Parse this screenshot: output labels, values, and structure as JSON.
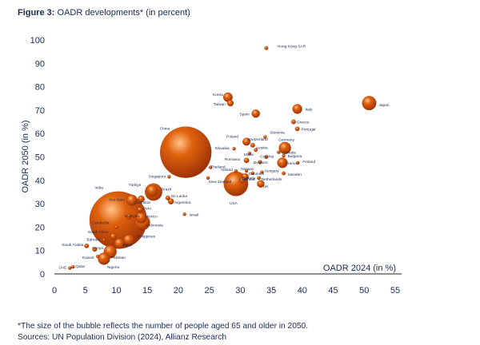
{
  "figure": {
    "label": "Figure 3:",
    "title": "OADR developments* (in percent)",
    "footnote": "*The size of the bubble reflects the number of people aged 65 and older in 2050.",
    "sources": "Sources: UN Population Division (2024), Allianz Research"
  },
  "colors": {
    "bubble_dark": "#9c3206",
    "bubble_mid": "#e0620e",
    "bubble_light": "#ffc48a",
    "axis_text": "#1a2a55",
    "label_text": "#1a2a55"
  },
  "chart_data": {
    "type": "scatter",
    "title": "OADR developments* (in percent)",
    "xlabel": "OADR 2024 (in %)",
    "ylabel": "OADR 2050 (in %)",
    "xlim": [
      0,
      55
    ],
    "ylim": [
      0,
      100
    ],
    "xticks": [
      0,
      5,
      10,
      15,
      20,
      25,
      30,
      35,
      40,
      45,
      50,
      55
    ],
    "yticks": [
      0,
      10,
      20,
      30,
      40,
      50,
      60,
      70,
      80,
      90,
      100
    ],
    "size_meaning": "Number of people aged 65 and older in 2050",
    "points": [
      {
        "label": "Hong Kong SAR",
        "x": 34.2,
        "y": 96.5,
        "size": 2
      },
      {
        "label": "Korea",
        "x": 28.0,
        "y": 75.5,
        "size": 13
      },
      {
        "label": "Taiwan",
        "x": 28.4,
        "y": 73.0,
        "size": 6
      },
      {
        "label": "Spain",
        "x": 32.5,
        "y": 68.5,
        "size": 10
      },
      {
        "label": "Italy",
        "x": 39.2,
        "y": 70.5,
        "size": 14
      },
      {
        "label": "Japan",
        "x": 50.8,
        "y": 73.0,
        "size": 30
      },
      {
        "label": "Greece",
        "x": 38.6,
        "y": 65.0,
        "size": 3
      },
      {
        "label": "Portugal",
        "x": 39.2,
        "y": 62.0,
        "size": 3
      },
      {
        "label": "China",
        "x": 21.2,
        "y": 52.0,
        "size": 400
      },
      {
        "label": "Slovenia",
        "x": 34.0,
        "y": 58.5,
        "size": 1
      },
      {
        "label": "Poland",
        "x": 31.0,
        "y": 56.5,
        "size": 9
      },
      {
        "label": "Switzerland",
        "x": 32.0,
        "y": 55.0,
        "size": 3
      },
      {
        "label": "Slovakia",
        "x": 29.0,
        "y": 53.5,
        "size": 1
      },
      {
        "label": "Austria",
        "x": 32.5,
        "y": 53.0,
        "size": 2
      },
      {
        "label": "Germany",
        "x": 37.2,
        "y": 53.8,
        "size": 22
      },
      {
        "label": "Croatia",
        "x": 36.2,
        "y": 52.0,
        "size": 1
      },
      {
        "label": "Malta",
        "x": 31.5,
        "y": 51.5,
        "size": 1
      },
      {
        "label": "Czechia",
        "x": 34.2,
        "y": 50.0,
        "size": 2
      },
      {
        "label": "Bulgaria",
        "x": 37.0,
        "y": 50.5,
        "size": 1
      },
      {
        "label": "Romania",
        "x": 31.0,
        "y": 48.5,
        "size": 4
      },
      {
        "label": "Belgium",
        "x": 33.2,
        "y": 47.8,
        "size": 2
      },
      {
        "label": "France",
        "x": 36.8,
        "y": 47.5,
        "size": 16
      },
      {
        "label": "Finland",
        "x": 39.3,
        "y": 47.5,
        "size": 1
      },
      {
        "label": "Thailand",
        "x": 25.2,
        "y": 45.5,
        "size": 1
      },
      {
        "label": "Ireland",
        "x": 29.3,
        "y": 44.0,
        "size": 1
      },
      {
        "label": "Norway",
        "x": 31.0,
        "y": 44.0,
        "size": 1
      },
      {
        "label": "Denmark",
        "x": 32.0,
        "y": 43.0,
        "size": 1
      },
      {
        "label": "Canada",
        "x": 30.8,
        "y": 41.5,
        "size": 7
      },
      {
        "label": "Hungary",
        "x": 33.5,
        "y": 43.5,
        "size": 1
      },
      {
        "label": "Sweden",
        "x": 37.0,
        "y": 43.0,
        "size": 2
      },
      {
        "label": "Australia",
        "x": 30.3,
        "y": 40.0,
        "size": 5
      },
      {
        "label": "Netherlands",
        "x": 33.0,
        "y": 41.0,
        "size": 2
      },
      {
        "label": "UK",
        "x": 33.3,
        "y": 38.5,
        "size": 8
      },
      {
        "label": "USA",
        "x": 29.3,
        "y": 38.5,
        "size": 90
      },
      {
        "label": "Singapore",
        "x": 18.5,
        "y": 41.5,
        "size": 1
      },
      {
        "label": "New Zealand",
        "x": 24.8,
        "y": 41.0,
        "size": 1
      },
      {
        "label": "Türkiye",
        "x": 15.8,
        "y": 35.5,
        "size": 20
      },
      {
        "label": "Brazil",
        "x": 16.0,
        "y": 35.0,
        "size": 45
      },
      {
        "label": "Colombia",
        "x": 14.0,
        "y": 32.0,
        "size": 7
      },
      {
        "label": "Sri Lanka",
        "x": 18.3,
        "y": 32.5,
        "size": 3
      },
      {
        "label": "Argentina",
        "x": 18.8,
        "y": 31.0,
        "size": 5
      },
      {
        "label": "Viet Nam",
        "x": 12.5,
        "y": 31.5,
        "size": 18
      },
      {
        "label": "Peru",
        "x": 13.8,
        "y": 27.5,
        "size": 4
      },
      {
        "label": "India",
        "x": 10.3,
        "y": 23.0,
        "size": 500
      },
      {
        "label": "Malaysia",
        "x": 12.0,
        "y": 24.5,
        "size": 4
      },
      {
        "label": "Mexico",
        "x": 14.0,
        "y": 24.0,
        "size": 18
      },
      {
        "label": "Israel",
        "x": 21.0,
        "y": 25.5,
        "size": 1
      },
      {
        "label": "Indonesia",
        "x": 14.2,
        "y": 22.0,
        "size": 35
      },
      {
        "label": "Cambodia",
        "x": 10.0,
        "y": 20.0,
        "size": 2
      },
      {
        "label": "South Africa",
        "x": 9.5,
        "y": 16.0,
        "size": 6
      },
      {
        "label": "Bahrain",
        "x": 8.0,
        "y": 14.5,
        "size": 1
      },
      {
        "label": "Philippines",
        "x": 12.0,
        "y": 14.5,
        "size": 18
      },
      {
        "label": "Egypt",
        "x": 10.5,
        "y": 13.0,
        "size": 16
      },
      {
        "label": "Saudi Arabia",
        "x": 5.2,
        "y": 12.0,
        "size": 3
      },
      {
        "label": "Kenya",
        "x": 6.5,
        "y": 10.5,
        "size": 3
      },
      {
        "label": "Pakistan",
        "x": 9.0,
        "y": 9.5,
        "size": 25
      },
      {
        "label": "Kuwait",
        "x": 7.0,
        "y": 7.5,
        "size": 1
      },
      {
        "label": "Nigeria",
        "x": 8.0,
        "y": 6.5,
        "size": 22
      },
      {
        "label": "UAE",
        "x": 2.5,
        "y": 2.5,
        "size": 1
      },
      {
        "label": "Qatar",
        "x": 3.0,
        "y": 3.0,
        "size": 1
      }
    ]
  }
}
